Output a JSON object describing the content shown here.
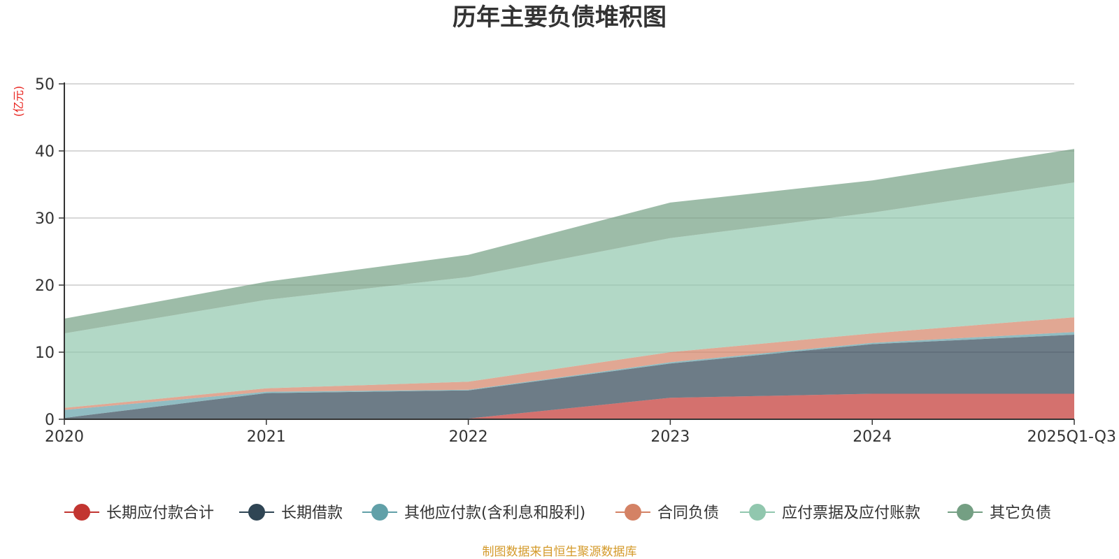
{
  "chart_data": {
    "type": "area",
    "stacked": true,
    "title": "历年主要负债堆积图",
    "ylabel": "(亿元)",
    "xlabel": "",
    "categories": [
      "2020",
      "2021",
      "2022",
      "2023",
      "2024",
      "2025Q1-Q3"
    ],
    "ylim": [
      0,
      50
    ],
    "yticks": [
      0,
      10,
      20,
      30,
      40,
      50
    ],
    "grid": true,
    "legend_position": "bottom",
    "series": [
      {
        "name": "长期应付款合计",
        "color": "#c23531",
        "values": [
          0,
          0,
          0.1,
          3.2,
          3.8,
          3.8
        ]
      },
      {
        "name": "长期借款",
        "color": "#2f4554",
        "values": [
          0.2,
          3.9,
          4.2,
          5.1,
          7.4,
          8.8
        ]
      },
      {
        "name": "其他应付款(含利息和股利)",
        "color": "#61a0a8",
        "values": [
          1.2,
          0.2,
          0.1,
          0.2,
          0.2,
          0.4
        ]
      },
      {
        "name": "合同负债",
        "color": "#d48265",
        "values": [
          0.3,
          0.5,
          1.2,
          1.5,
          1.4,
          2.2
        ]
      },
      {
        "name": "应付票据及应付账款",
        "color": "#91c7ae",
        "values": [
          11.1,
          13.2,
          15.6,
          17.0,
          18.0,
          20.1
        ]
      },
      {
        "name": "其它负债",
        "color": "#749f83",
        "values": [
          2.2,
          2.7,
          3.3,
          5.3,
          4.8,
          5.0
        ]
      }
    ]
  },
  "footer": {
    "source": "制图数据来自恒生聚源数据库",
    "source_color": "#d49a2a"
  },
  "colors": {
    "unit_label": "#e8231e",
    "axis": "#333333",
    "grid": "#cccccc"
  }
}
